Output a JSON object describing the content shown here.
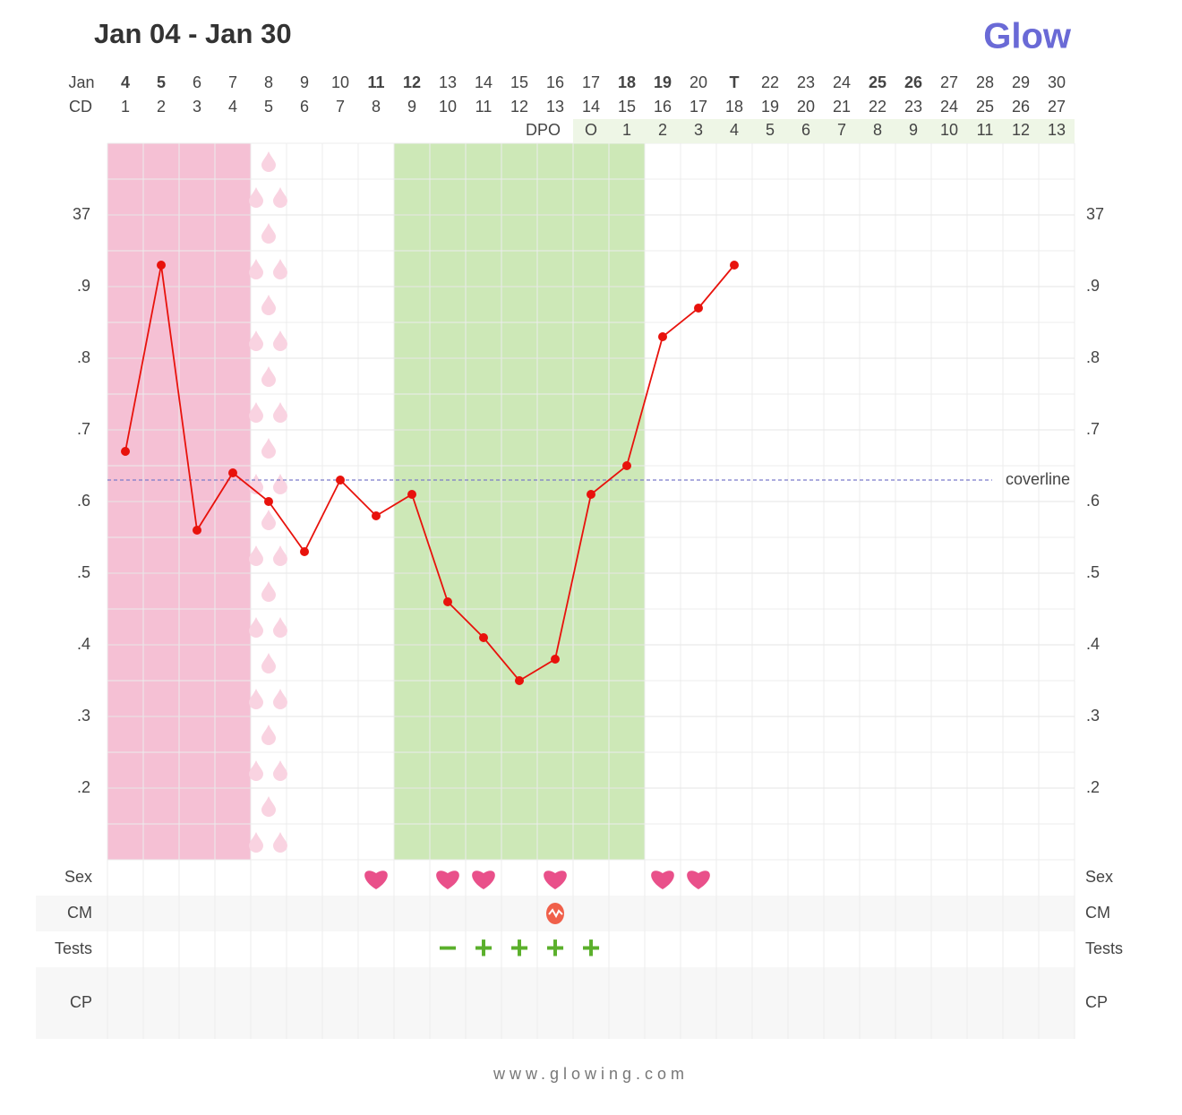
{
  "title": "Jan 04 - Jan 30",
  "logo": "Glow",
  "footer": "www.glowing.com",
  "chart_data": {
    "type": "line",
    "month_label": "Jan",
    "dates": [
      "4",
      "5",
      "6",
      "7",
      "8",
      "9",
      "10",
      "11",
      "12",
      "13",
      "14",
      "15",
      "16",
      "17",
      "18",
      "19",
      "20",
      "T",
      "22",
      "23",
      "24",
      "25",
      "26",
      "27",
      "28",
      "29",
      "30"
    ],
    "date_colors": [
      "#e8503c",
      "#e8503c",
      "#888",
      "#888",
      "#888",
      "#888",
      "#888",
      "#e8503c",
      "#e8503c",
      "#888",
      "#888",
      "#888",
      "#888",
      "#888",
      "#e8503c",
      "#e8503c",
      "#888",
      "#5a5ac4",
      "#888",
      "#888",
      "#888",
      "#e8503c",
      "#e8503c",
      "#888",
      "#888",
      "#888",
      "#888"
    ],
    "cd_label": "CD",
    "categories": [
      1,
      2,
      3,
      4,
      5,
      6,
      7,
      8,
      9,
      10,
      11,
      12,
      13,
      14,
      15,
      16,
      17,
      18,
      19,
      20,
      21,
      22,
      23,
      24,
      25,
      26,
      27
    ],
    "dpo_label": "DPO",
    "dpo": [
      null,
      null,
      null,
      null,
      null,
      null,
      null,
      null,
      null,
      null,
      null,
      null,
      null,
      "O",
      "1",
      "2",
      "3",
      "4",
      "5",
      "6",
      "7",
      "8",
      "9",
      "10",
      "11",
      "12",
      "13"
    ],
    "values": [
      36.67,
      36.93,
      36.56,
      36.64,
      36.6,
      36.53,
      36.63,
      36.58,
      36.61,
      36.46,
      36.41,
      36.35,
      36.38,
      36.61,
      36.65,
      36.83,
      36.87,
      36.93,
      null,
      null,
      null,
      null,
      null,
      null,
      null,
      null,
      null
    ],
    "color": "#e8120c",
    "ylim": [
      36.1,
      37.1
    ],
    "yticks": [
      {
        "value": 36.2,
        "label": ".2"
      },
      {
        "value": 36.3,
        "label": ".3"
      },
      {
        "value": 36.4,
        "label": ".4"
      },
      {
        "value": 36.5,
        "label": ".5"
      },
      {
        "value": 36.6,
        "label": ".6"
      },
      {
        "value": 36.7,
        "label": ".7"
      },
      {
        "value": 36.8,
        "label": ".8"
      },
      {
        "value": 36.9,
        "label": ".9"
      },
      37
    ],
    "coverline": {
      "value": 36.63,
      "label": "coverline",
      "color": "#7b7bc9"
    },
    "period": {
      "from_cd": 1,
      "to_cd": 4,
      "color": "#f5c0d4"
    },
    "spotting_cd": 5,
    "fertile_window": {
      "from_cd": 9,
      "to_cd": 15,
      "color": "#cde8b7"
    },
    "rows": {
      "sex": {
        "label": "Sex",
        "cd": [
          8,
          10,
          11,
          13,
          16,
          17
        ]
      },
      "cm": {
        "label": "CM",
        "cd": [
          13
        ]
      },
      "tests": {
        "label": "Tests",
        "results": [
          {
            "cd": 10,
            "label": "−"
          },
          {
            "cd": 11,
            "label": "+"
          },
          {
            "cd": 12,
            "label": "+"
          },
          {
            "cd": 13,
            "label": "+"
          },
          {
            "cd": 14,
            "label": "+"
          }
        ]
      },
      "cp": {
        "label": "CP"
      }
    }
  }
}
